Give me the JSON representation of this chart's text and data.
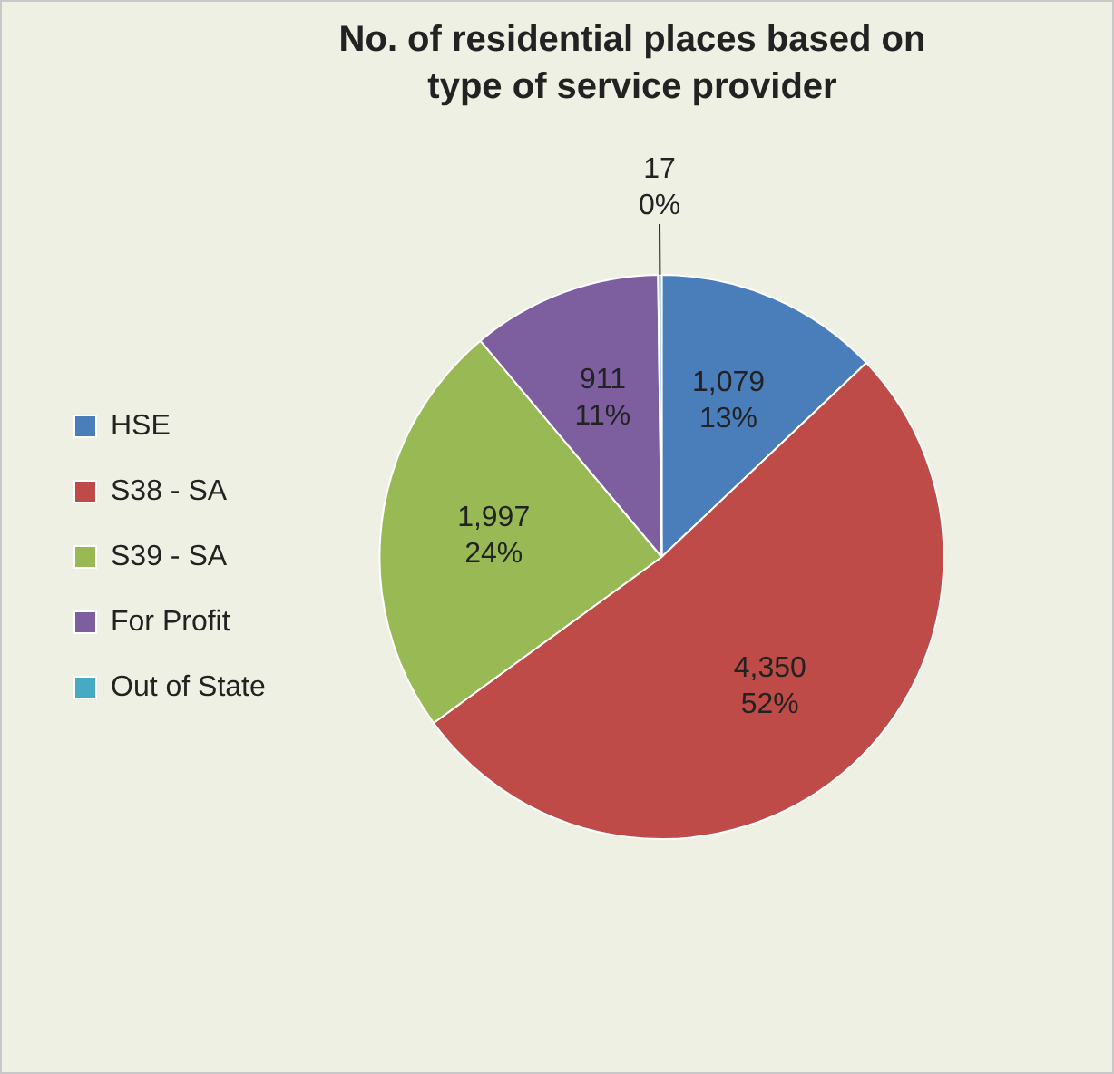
{
  "chart_data": {
    "type": "pie",
    "title": "No. of residential places based on type of service provider",
    "categories": [
      "HSE",
      "S38 - SA",
      "S39 - SA",
      "For Profit",
      "Out of State"
    ],
    "values": [
      1079,
      4350,
      1997,
      911,
      17
    ],
    "colors": [
      "#4a7ebb",
      "#be4b48",
      "#98b954",
      "#7d5fa0",
      "#46aac5"
    ],
    "value_labels": [
      "1,079\n13%",
      "4,350\n52%",
      "1,997\n24%",
      "911\n11%",
      "17\n0%"
    ],
    "legend": "left"
  }
}
